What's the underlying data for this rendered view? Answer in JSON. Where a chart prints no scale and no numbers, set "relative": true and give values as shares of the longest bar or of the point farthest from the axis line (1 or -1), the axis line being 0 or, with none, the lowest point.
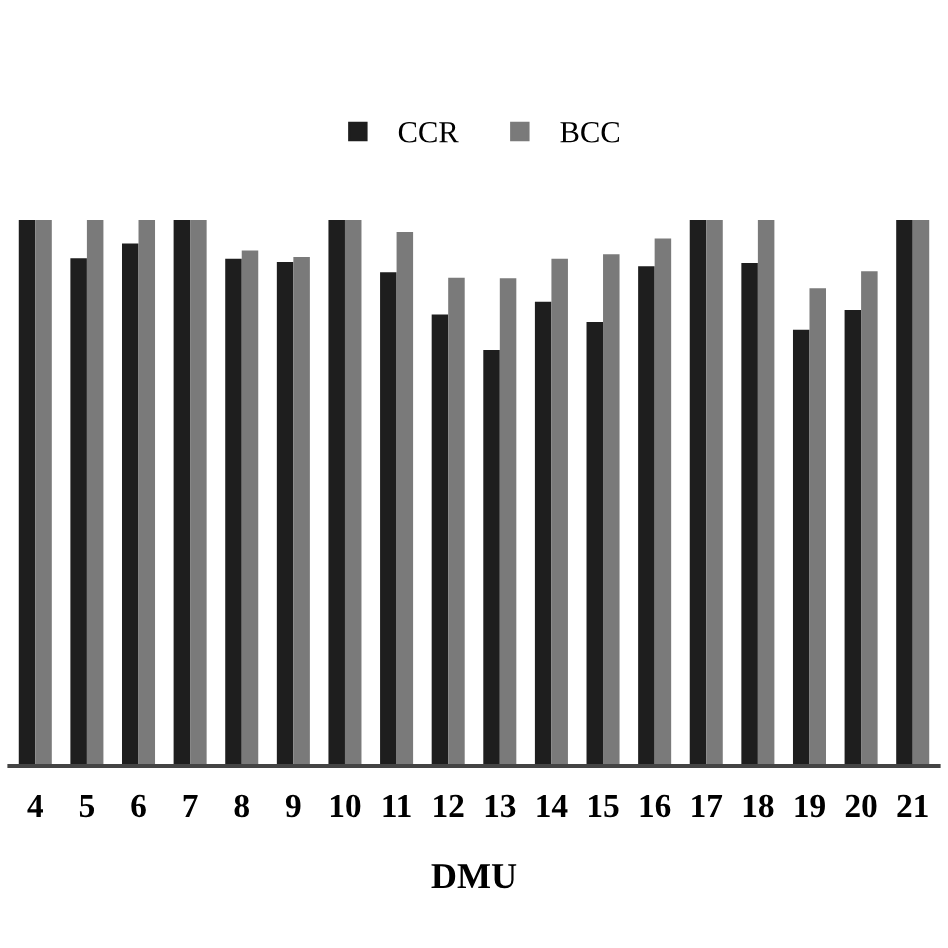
{
  "chart_data": {
    "type": "bar",
    "xlabel": "DMU",
    "relative": true,
    "legend": "top",
    "grid": false,
    "categories": [
      "4",
      "5",
      "6",
      "7",
      "8",
      "9",
      "10",
      "11",
      "12",
      "13",
      "14",
      "15",
      "16",
      "17",
      "18",
      "19",
      "20",
      "21"
    ],
    "series": [
      {
        "name": "CCR",
        "color": "#1e1e1e",
        "values": [
          1,
          0.93,
          0.957,
          1,
          0.929,
          0.923,
          1,
          0.904,
          0.827,
          0.762,
          0.85,
          0.813,
          0.915,
          1,
          0.921,
          0.799,
          0.835,
          1
        ]
      },
      {
        "name": "BCC",
        "color": "#7a7a7a",
        "values": [
          1,
          1,
          1,
          1,
          0.944,
          0.932,
          1,
          0.978,
          0.894,
          0.893,
          0.929,
          0.937,
          0.966,
          1,
          1,
          0.875,
          0.906,
          1
        ]
      }
    ]
  }
}
